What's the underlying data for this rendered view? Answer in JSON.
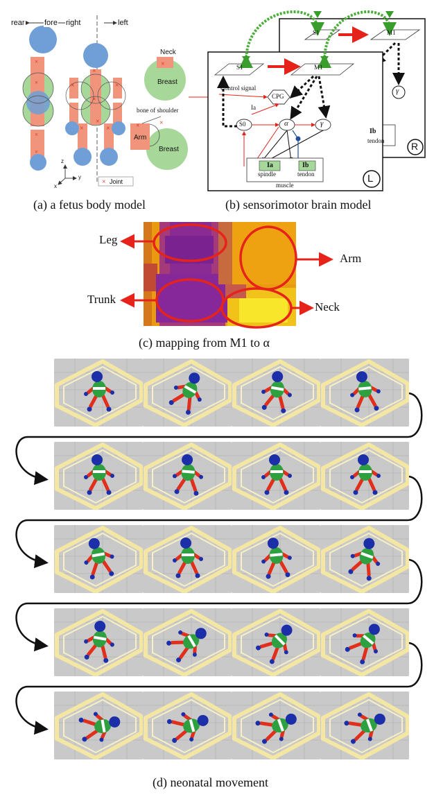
{
  "panel_a": {
    "caption": "(a) a fetus body model",
    "rear": "rear",
    "fore": "fore",
    "right": "right",
    "left": "left",
    "neck": "Neck",
    "breast_top": "Breast",
    "bone_of_shoulder": "bone of shoulder",
    "arm": "Arm",
    "breast_bottom": "Breast",
    "joint": "Joint",
    "axis_z": "z",
    "axis_y": "y",
    "axis_x": "x"
  },
  "panel_b": {
    "caption": "(b) sensorimotor brain model",
    "s1_back": "S1",
    "m1_back": "M1",
    "s1_front": "S1",
    "m1_front": "M1",
    "control_signal": "Control signal",
    "cpg": "CPG",
    "ia_link": "Ia",
    "s0": "S0",
    "alpha": "α",
    "gamma_front": "γ",
    "gamma_back": "γ",
    "ia_box": "Ia",
    "ib_front": "Ib",
    "ib_back": "Ib",
    "spindle": "spindle",
    "tendon_front": "tendon",
    "tendon_back": "tendon",
    "muscle": "muscle",
    "left_badge": "L",
    "right_badge": "R"
  },
  "panel_c": {
    "caption": "(c) mapping from M1 to α",
    "leg": "Leg",
    "arm": "Arm",
    "trunk": "Trunk",
    "neck": "Neck"
  },
  "panel_d": {
    "caption": "(d) neonatal movement",
    "rows": 5,
    "cols": 4
  },
  "colors": {
    "body_red": "#f0957c",
    "blue_circle": "#6f9fd6",
    "green_circle": "#a7d89a",
    "arrow_red": "#e5231b",
    "dashed_green": "#4aae39",
    "heat_orange": "#e99a10",
    "heat_purple": "#8a2a93",
    "heat_yellow": "#f3e21a"
  }
}
